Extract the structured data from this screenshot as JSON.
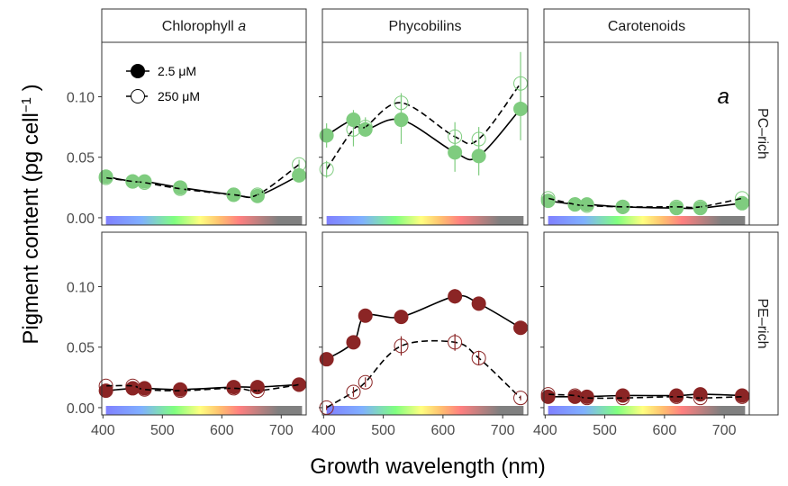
{
  "chart_data": {
    "type": "scatter",
    "panel_columns": [
      "Chlorophyll a",
      "Phycobilins",
      "Carotenoids"
    ],
    "panel_column_display": [
      {
        "text": "Chlorophyll ",
        "italic": "a"
      },
      {
        "text": "Phycobilins",
        "italic": ""
      },
      {
        "text": "Carotenoids",
        "italic": ""
      }
    ],
    "panel_rows": [
      "PC–rich",
      "PE–rich"
    ],
    "xlabel": "Growth wavelength (nm)",
    "ylabel": "Pigment content",
    "ylabel_unit": "(pg cell",
    "ylabel_exponent": "−1",
    "ylabel_close": ")",
    "xlim": [
      398,
      742
    ],
    "ylim": [
      -0.006,
      0.145
    ],
    "x_ticks": [
      400,
      500,
      600,
      700
    ],
    "y_ticks": [
      0.0,
      0.05,
      0.1
    ],
    "y_tick_labels": [
      "0.00",
      "0.05",
      "0.10"
    ],
    "x": [
      405,
      450,
      470,
      530,
      620,
      660,
      730
    ],
    "spectrum_band_range": [
      405,
      735
    ],
    "annotation": {
      "text": "a",
      "panel": "PC–rich/Carotenoids"
    },
    "legend": {
      "position": "top-left",
      "entries": [
        {
          "label": "2.5 μM",
          "marker": "filled",
          "line": "solid"
        },
        {
          "label": "250 μM",
          "marker": "open",
          "line": "dashed"
        }
      ]
    },
    "row_colors": {
      "PC–rich": "#7fcc7f",
      "PE–rich": "#8b2525"
    },
    "grid": false,
    "panels": [
      {
        "row": "PC–rich",
        "col": "Chlorophyll a",
        "series": [
          {
            "name": "2.5 μM",
            "y": [
              0.034,
              0.03,
              0.03,
              0.025,
              0.019,
              0.018,
              0.035
            ],
            "err": [
              0.002,
              0.002,
              0.002,
              0.002,
              0.002,
              0.002,
              0.002
            ]
          },
          {
            "name": "250 μM",
            "y": [
              0.033,
              0.03,
              0.029,
              0.024,
              0.019,
              0.019,
              0.044
            ],
            "err": [
              0.002,
              0.002,
              0.002,
              0.002,
              0.002,
              0.002,
              0.004
            ]
          }
        ]
      },
      {
        "row": "PC–rich",
        "col": "Phycobilins",
        "series": [
          {
            "name": "2.5 μM",
            "y": [
              0.068,
              0.081,
              0.073,
              0.081,
              0.054,
              0.051,
              0.09
            ],
            "err": [
              0.01,
              0.008,
              0.006,
              0.02,
              0.016,
              0.016,
              0.026
            ]
          },
          {
            "name": "250 μM",
            "y": [
              0.04,
              0.073,
              0.075,
              0.095,
              0.067,
              0.065,
              0.111
            ],
            "err": [
              0.007,
              0.014,
              0.008,
              0.008,
              0.012,
              0.01,
              0.026
            ]
          }
        ]
      },
      {
        "row": "PC–rich",
        "col": "Carotenoids",
        "series": [
          {
            "name": "2.5 μM",
            "y": [
              0.014,
              0.011,
              0.011,
              0.009,
              0.008,
              0.008,
              0.012
            ],
            "err": [
              0.001,
              0.001,
              0.001,
              0.001,
              0.001,
              0.001,
              0.001
            ]
          },
          {
            "name": "250 μM",
            "y": [
              0.016,
              0.011,
              0.01,
              0.009,
              0.009,
              0.009,
              0.016
            ],
            "err": [
              0.001,
              0.001,
              0.001,
              0.001,
              0.001,
              0.001,
              0.001
            ]
          }
        ]
      },
      {
        "row": "PE–rich",
        "col": "Chlorophyll a",
        "series": [
          {
            "name": "2.5 μM",
            "y": [
              0.014,
              0.016,
              0.016,
              0.015,
              0.017,
              0.017,
              0.019
            ],
            "err": [
              0.001,
              0.001,
              0.001,
              0.001,
              0.001,
              0.001,
              0.001
            ]
          },
          {
            "name": "250 μM",
            "y": [
              0.018,
              0.018,
              0.015,
              0.014,
              0.016,
              0.014,
              0.019
            ],
            "err": [
              0.001,
              0.001,
              0.001,
              0.001,
              0.001,
              0.001,
              0.001
            ]
          }
        ]
      },
      {
        "row": "PE–rich",
        "col": "Phycobilins",
        "series": [
          {
            "name": "2.5 μM",
            "y": [
              0.04,
              0.054,
              0.076,
              0.075,
              0.092,
              0.086,
              0.066
            ],
            "err": [
              0.002,
              0.004,
              0.003,
              0.003,
              0.006,
              0.005,
              0.003
            ]
          },
          {
            "name": "250 μM",
            "y": [
              0.0,
              0.013,
              0.021,
              0.051,
              0.054,
              0.041,
              0.008
            ],
            "err": [
              0.002,
              0.004,
              0.004,
              0.008,
              0.007,
              0.006,
              0.002
            ]
          }
        ]
      },
      {
        "row": "PE–rich",
        "col": "Carotenoids",
        "series": [
          {
            "name": "2.5 μM",
            "y": [
              0.009,
              0.009,
              0.009,
              0.01,
              0.01,
              0.011,
              0.01
            ],
            "err": [
              0.001,
              0.001,
              0.001,
              0.001,
              0.001,
              0.001,
              0.001
            ]
          },
          {
            "name": "250 μM",
            "y": [
              0.011,
              0.01,
              0.008,
              0.008,
              0.009,
              0.008,
              0.009
            ],
            "err": [
              0.001,
              0.001,
              0.001,
              0.001,
              0.001,
              0.001,
              0.001
            ]
          }
        ]
      }
    ]
  }
}
